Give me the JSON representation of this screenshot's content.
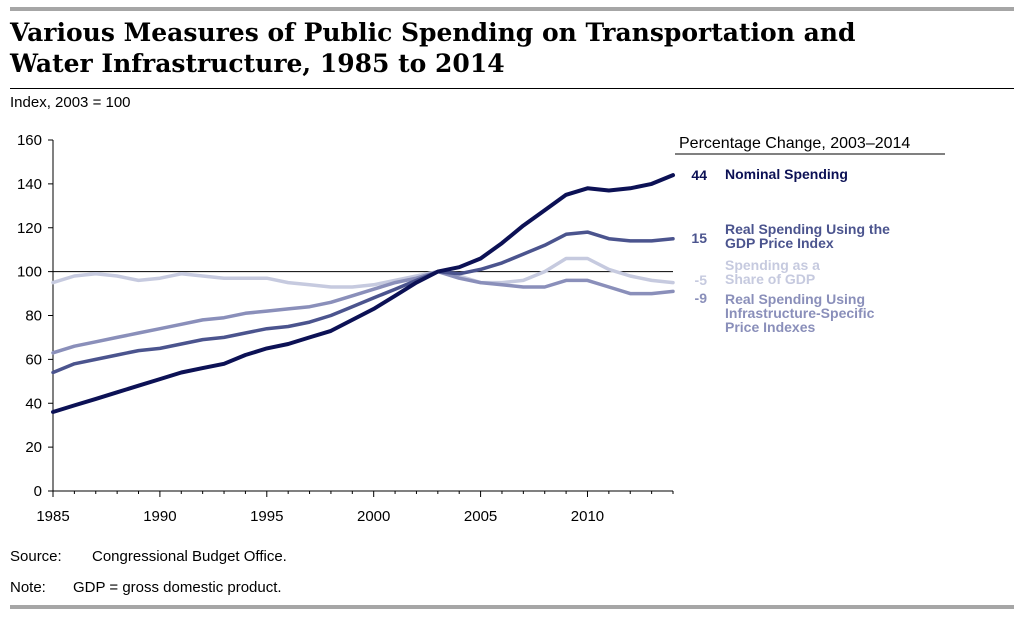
{
  "title_line1": "Various Measures of Public Spending on Transportation and",
  "title_line2": "Water Infrastructure, 1985 to 2014",
  "unit_label": "Index, 2003 = 100",
  "source_label": "Source:",
  "source_text": "Congressional Budget Office.",
  "note_label": "Note:",
  "note_text": "GDP = gross domestic product.",
  "chart_data": {
    "type": "line",
    "title": "Various Measures of Public Spending on Transportation and Water Infrastructure, 1985 to 2014",
    "ylabel": "Index, 2003 = 100",
    "xlabel": "",
    "xlim": [
      1985,
      2014
    ],
    "ylim": [
      0,
      160
    ],
    "x_ticks": [
      1985,
      1990,
      1995,
      2000,
      2005,
      2010
    ],
    "y_ticks": [
      0,
      20,
      40,
      60,
      80,
      100,
      120,
      140,
      160
    ],
    "reference_line": 100,
    "grid": false,
    "x": [
      1985,
      1986,
      1987,
      1988,
      1989,
      1990,
      1991,
      1992,
      1993,
      1994,
      1995,
      1996,
      1997,
      1998,
      1999,
      2000,
      2001,
      2002,
      2003,
      2004,
      2005,
      2006,
      2007,
      2008,
      2009,
      2010,
      2011,
      2012,
      2013,
      2014
    ],
    "legend_title": "Percentage Change, 2003–2014",
    "series": [
      {
        "name": "Spending as a Share of GDP",
        "label_lines": [
          "Spending as a",
          "Share of GDP"
        ],
        "change": "-5",
        "color": "#c6cadf",
        "width": 3.5,
        "values": [
          95,
          98,
          99,
          98,
          96,
          97,
          99,
          98,
          97,
          97,
          97,
          95,
          94,
          93,
          93,
          94,
          96,
          98,
          100,
          98,
          95,
          95,
          96,
          100,
          106,
          106,
          101,
          98,
          96,
          95
        ]
      },
      {
        "name": "Real Spending Using Infrastructure-Specific Price Indexes",
        "label_lines": [
          "Real Spending Using",
          "Infrastructure-Specific",
          "Price Indexes"
        ],
        "change": "-9",
        "color": "#8a8fba",
        "width": 3.5,
        "values": [
          63,
          66,
          68,
          70,
          72,
          74,
          76,
          78,
          79,
          81,
          82,
          83,
          84,
          86,
          89,
          92,
          95,
          97,
          100,
          97,
          95,
          94,
          93,
          93,
          96,
          96,
          93,
          90,
          90,
          91
        ]
      },
      {
        "name": "Real Spending Using the GDP Price Index",
        "label_lines": [
          "Real Spending Using the",
          "GDP Price Index"
        ],
        "change": "15",
        "color": "#4b548e",
        "width": 3.5,
        "values": [
          54,
          58,
          60,
          62,
          64,
          65,
          67,
          69,
          70,
          72,
          74,
          75,
          77,
          80,
          84,
          88,
          92,
          96,
          100,
          99,
          101,
          104,
          108,
          112,
          117,
          118,
          115,
          114,
          114,
          115
        ]
      },
      {
        "name": "Nominal Spending",
        "label_lines": [
          "Nominal Spending"
        ],
        "change": "44",
        "color": "#0c1155",
        "width": 4,
        "values": [
          36,
          39,
          42,
          45,
          48,
          51,
          54,
          56,
          58,
          62,
          65,
          67,
          70,
          73,
          78,
          83,
          89,
          95,
          100,
          102,
          106,
          113,
          121,
          128,
          135,
          138,
          137,
          138,
          140,
          144
        ]
      }
    ]
  }
}
